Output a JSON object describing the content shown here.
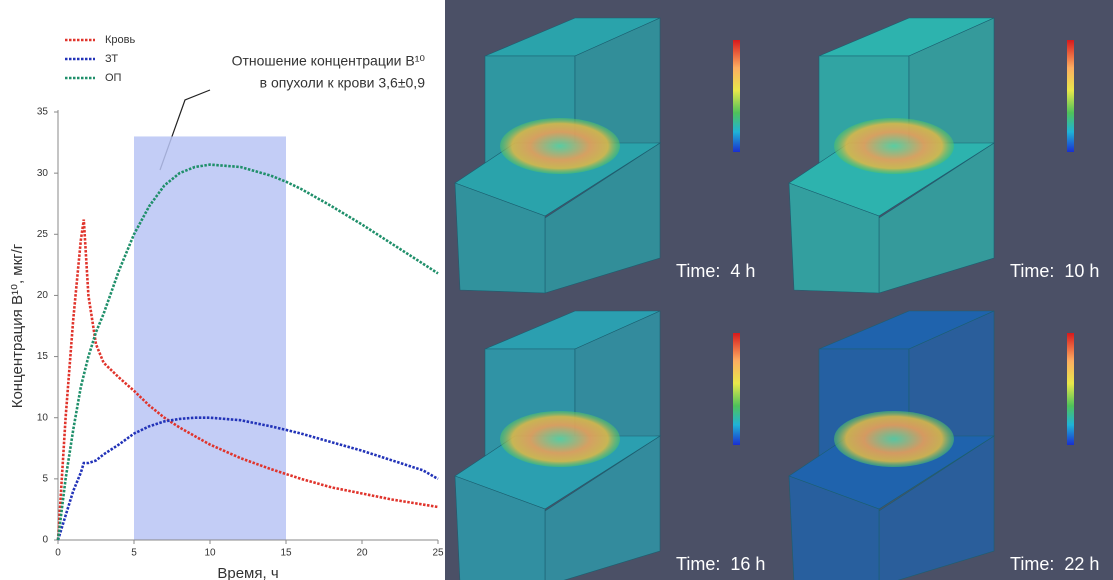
{
  "chart_data": {
    "type": "line",
    "y_label": "Концентрация B¹⁰, мкг/г",
    "x_label": "Время, ч",
    "annotation": [
      "Отношение концентрации B¹⁰",
      "в опухоли к крови 3,6±0,9"
    ],
    "x": [
      0,
      0.5,
      1,
      1.5,
      1.7,
      2,
      2.5,
      3,
      4,
      5,
      6,
      7,
      8,
      9,
      10,
      12,
      14,
      15,
      16,
      18,
      20,
      22,
      24,
      25
    ],
    "series": [
      {
        "name": "Кровь",
        "color": "#e0342c",
        "values": [
          0,
          10,
          18,
          24.5,
          26.2,
          20,
          16,
          14.5,
          13.3,
          12.2,
          11,
          10,
          9.2,
          8.5,
          7.8,
          6.7,
          5.8,
          5.4,
          5,
          4.3,
          3.8,
          3.3,
          2.9,
          2.7
        ]
      },
      {
        "name": "ЗТ",
        "color": "#2233b8",
        "values": [
          0,
          2,
          4,
          5.5,
          6.3,
          6.3,
          6.5,
          7,
          7.8,
          8.7,
          9.3,
          9.7,
          9.9,
          10,
          10,
          9.8,
          9.3,
          9,
          8.7,
          8,
          7.3,
          6.5,
          5.7,
          5
        ]
      },
      {
        "name": "ОП",
        "color": "#1f8f6a",
        "values": [
          0,
          5,
          9,
          12.5,
          13.5,
          15,
          17,
          18.5,
          22,
          25,
          27.3,
          29,
          30,
          30.5,
          30.7,
          30.5,
          29.8,
          29.3,
          28.7,
          27.3,
          25.8,
          24.2,
          22.6,
          21.8
        ]
      }
    ],
    "xlim": [
      0,
      25
    ],
    "xticks": [
      0,
      5,
      10,
      15,
      20,
      25
    ],
    "ylim": [
      0,
      35
    ],
    "yticks": [
      0,
      5,
      10,
      15,
      20,
      25,
      30,
      35
    ],
    "grid": false,
    "legend": "top-left",
    "highlight_xlim": [
      5,
      15
    ],
    "highlight_top": 33,
    "highlight_color": "#b9c4f5"
  },
  "panels": [
    {
      "label": "Time:  4 h",
      "box_color": "#2aa3ab"
    },
    {
      "label": "Time:  10 h",
      "box_color": "#2db3ae"
    },
    {
      "label": "Time:  16 h",
      "box_color": "#2b9fb0"
    },
    {
      "label": "Time:  22 h",
      "box_color": "#1f63ad"
    }
  ]
}
